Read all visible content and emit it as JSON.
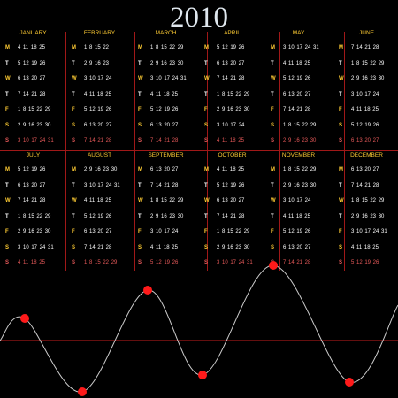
{
  "year": "2010",
  "weekday_letters": [
    "M",
    "T",
    "W",
    "T",
    "F",
    "S",
    "S"
  ],
  "months": [
    {
      "name": "JANUARY",
      "rows": [
        "4 11 18 25",
        "5 12 19 26",
        "6 13 20 27",
        "7 14 21 28",
        "1 8 15 22 29",
        "2 9 16 23 30",
        "3 10 17 24 31"
      ]
    },
    {
      "name": "FEBRUARY",
      "rows": [
        "1 8 15 22",
        "2 9 16 23",
        "3 10 17 24",
        "4 11 18 25",
        "5 12 19 26",
        "6 13 20 27",
        "7 14 21 28"
      ]
    },
    {
      "name": "MARCH",
      "rows": [
        "1 8 15 22 29",
        "2 9 16 23 30",
        "3 10 17 24 31",
        "4 11 18 25",
        "5 12 19 26",
        "6 13 20 27",
        "7 14 21 28"
      ]
    },
    {
      "name": "APRIL",
      "rows": [
        "5 12 19 26",
        "6 13 20 27",
        "7 14 21 28",
        "1 8 15 22 29",
        "2 9 16 23 30",
        "3 10 17 24",
        "4 11 18 25"
      ]
    },
    {
      "name": "MAY",
      "rows": [
        "3 10 17 24 31",
        "4 11 18 25",
        "5 12 19 26",
        "6 13 20 27",
        "7 14 21 28",
        "1 8 15 22 29",
        "2 9 16 23 30"
      ]
    },
    {
      "name": "JUNE",
      "rows": [
        "7 14 21 28",
        "1 8 15 22 29",
        "2 9 16 23 30",
        "3 10 17 24",
        "4 11 18 25",
        "5 12 19 26",
        "6 13 20 27"
      ]
    },
    {
      "name": "JULY",
      "rows": [
        "5 12 19 26",
        "6 13 20 27",
        "7 14 21 28",
        "1 8 15 22 29",
        "2 9 16 23 30",
        "3 10 17 24 31",
        "4 11 18 25"
      ]
    },
    {
      "name": "AUGUST",
      "rows": [
        "2 9 16 23 30",
        "3 10 17 24 31",
        "4 11 18 25",
        "5 12 19 26",
        "6 13 20 27",
        "7 14 21 28",
        "1 8 15 22 29"
      ]
    },
    {
      "name": "SEPTEMBER",
      "rows": [
        "6 13 20 27",
        "7 14 21 28",
        "1 8 15 22 29",
        "2 9 16 23 30",
        "3 10 17 24",
        "4 11 18 25",
        "5 12 19 26"
      ]
    },
    {
      "name": "OCTOBER",
      "rows": [
        "4 11 18 25",
        "5 12 19 26",
        "6 13 20 27",
        "7 14 21 28",
        "1 8 15 22 29",
        "2 9 16 23 30",
        "3 10 17 24 31"
      ]
    },
    {
      "name": "NOVEMBER",
      "rows": [
        "1 8 15 22 29",
        "2 9 16 23 30",
        "3 10 17 24",
        "4 11 18 25",
        "5 12 19 26",
        "6 13 20 27",
        "7 14 21 28"
      ]
    },
    {
      "name": "DECEMBER",
      "rows": [
        "6 13 20 27",
        "7 14 21 28",
        "1 8 15 22 29",
        "2 9 16 23 30",
        "3 10 17 24 31",
        "4 11 18 25",
        "5 12 19 26"
      ]
    }
  ],
  "colors": {
    "background": "#000000",
    "grid_line": "#a01818",
    "accent_yellow": "#ffcc33",
    "sunday_red": "#e85a5a",
    "dot": "#ff1a1a",
    "wave_line": "#cccccc",
    "year_text": "#dfe7ee"
  }
}
